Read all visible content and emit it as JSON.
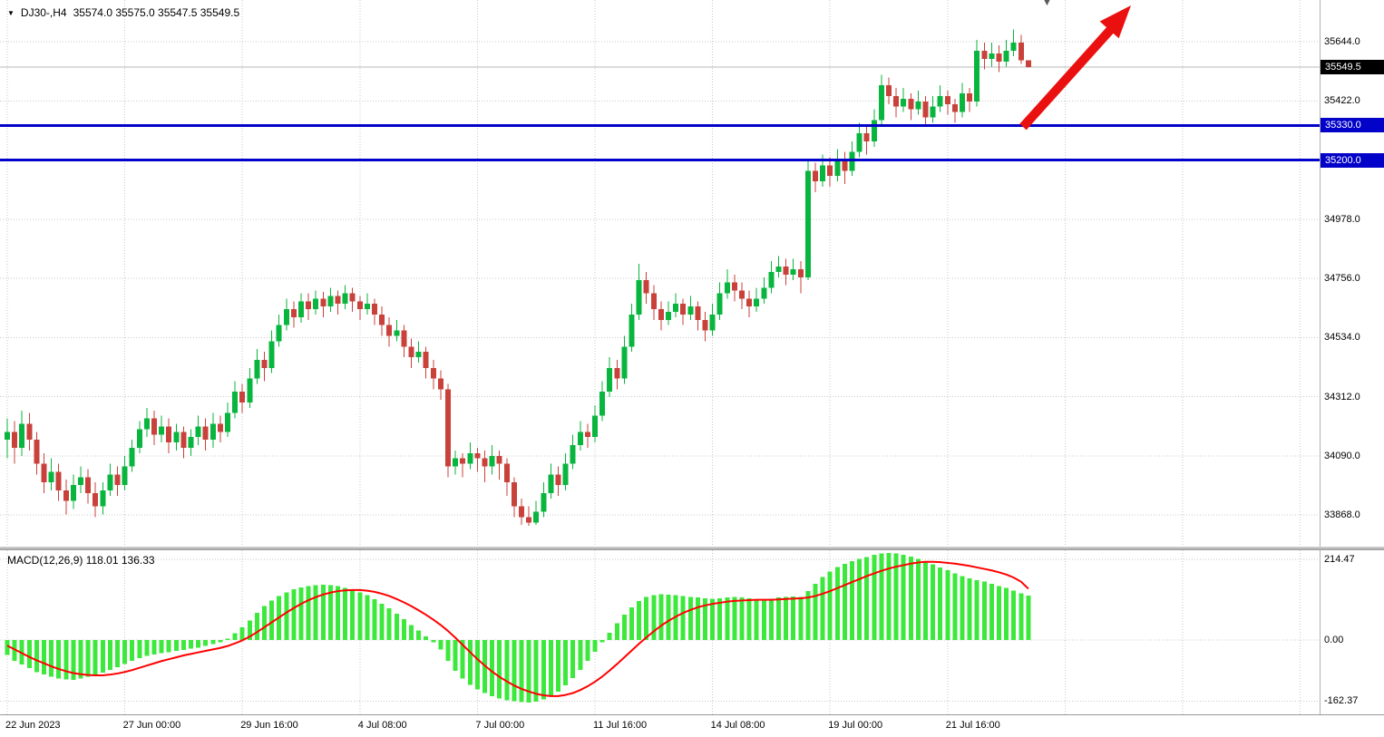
{
  "header": {
    "symbol": "DJ30-,H4",
    "ohlc": "35574.0 35575.0 35547.5 35549.5"
  },
  "icons": {
    "symbol_dropdown": "▼",
    "chart_shift": "▼"
  },
  "colors": {
    "bull": "#08b53e",
    "bear": "#c8413b",
    "macd_hist": "#3ce83c",
    "signal": "#ff0000",
    "hline": "#0202c8",
    "arrow": "#ea1010",
    "grid": "#c9c9c9",
    "bid_line": "#b8b8b8",
    "current_tag_bg": "#000000",
    "hline_tag_bg": "#0202c8"
  },
  "chart_data": {
    "type": "candlestick",
    "symbol": "DJ30-",
    "timeframe": "H4",
    "title": "DJ30-,H4 35574.0 35575.0 35547.5 35549.5",
    "current_bar": {
      "open": 35574.0,
      "high": 35575.0,
      "low": 35547.5,
      "close": 35549.5
    },
    "price_axis": {
      "ylim": [
        33749,
        35800.5
      ],
      "grid_prices": [
        35644,
        35422,
        35200,
        34978,
        34756,
        34534,
        34312,
        34090,
        33868
      ],
      "tick_labels": [
        {
          "price": 35644.0,
          "label": "35644.0"
        },
        {
          "price": 35422.0,
          "label": "35422.0"
        },
        {
          "price": 34978.0,
          "label": "34978.0"
        },
        {
          "price": 34756.0,
          "label": "34756.0"
        },
        {
          "price": 34534.0,
          "label": "34534.0"
        },
        {
          "price": 34312.0,
          "label": "34312.0"
        },
        {
          "price": 34090.0,
          "label": "34090.0"
        },
        {
          "price": 33868.0,
          "label": "33868.0"
        }
      ],
      "current_price": 35549.5,
      "current_price_label": "35549.5"
    },
    "hlines": [
      {
        "price": 35330.0,
        "label": "35330.0"
      },
      {
        "price": 35200.0,
        "label": "35200.0"
      }
    ],
    "time_axis": {
      "bars_per_grid": 16,
      "labels": [
        {
          "index": 0,
          "label": "22 Jun 2023"
        },
        {
          "index": 16,
          "label": "27 Jun 00:00"
        },
        {
          "index": 32,
          "label": "29 Jun 16:00"
        },
        {
          "index": 48,
          "label": "4 Jul 08:00"
        },
        {
          "index": 64,
          "label": "7 Jul 00:00"
        },
        {
          "index": 80,
          "label": "11 Jul 16:00"
        },
        {
          "index": 96,
          "label": "14 Jul 08:00"
        },
        {
          "index": 112,
          "label": "19 Jul 00:00"
        },
        {
          "index": 128,
          "label": "21 Jul 16:00"
        }
      ]
    },
    "candles": [
      [
        34150,
        34230,
        34080,
        34180
      ],
      [
        34180,
        34220,
        34060,
        34120
      ],
      [
        34120,
        34260,
        34090,
        34210
      ],
      [
        34210,
        34250,
        34110,
        34150
      ],
      [
        34150,
        34180,
        34020,
        34060
      ],
      [
        34060,
        34100,
        33950,
        33990
      ],
      [
        33990,
        34080,
        33960,
        34030
      ],
      [
        34030,
        34060,
        33920,
        33960
      ],
      [
        33960,
        34000,
        33870,
        33920
      ],
      [
        33920,
        34020,
        33890,
        33980
      ],
      [
        33980,
        34050,
        33950,
        34010
      ],
      [
        34010,
        34040,
        33910,
        33950
      ],
      [
        33950,
        33990,
        33860,
        33900
      ],
      [
        33900,
        33990,
        33870,
        33960
      ],
      [
        33960,
        34060,
        33940,
        34020
      ],
      [
        34020,
        34050,
        33940,
        33980
      ],
      [
        33980,
        34090,
        33960,
        34050
      ],
      [
        34050,
        34150,
        34030,
        34120
      ],
      [
        34120,
        34220,
        34100,
        34190
      ],
      [
        34190,
        34270,
        34160,
        34230
      ],
      [
        34230,
        34260,
        34130,
        34170
      ],
      [
        34170,
        34240,
        34140,
        34200
      ],
      [
        34200,
        34230,
        34100,
        34140
      ],
      [
        34140,
        34210,
        34110,
        34180
      ],
      [
        34180,
        34200,
        34080,
        34120
      ],
      [
        34120,
        34190,
        34090,
        34160
      ],
      [
        34160,
        34240,
        34130,
        34200
      ],
      [
        34200,
        34230,
        34110,
        34150
      ],
      [
        34150,
        34250,
        34120,
        34210
      ],
      [
        34210,
        34240,
        34140,
        34180
      ],
      [
        34180,
        34290,
        34160,
        34250
      ],
      [
        34250,
        34370,
        34230,
        34330
      ],
      [
        34330,
        34360,
        34250,
        34290
      ],
      [
        34290,
        34420,
        34270,
        34380
      ],
      [
        34380,
        34490,
        34360,
        34450
      ],
      [
        34450,
        34480,
        34370,
        34420
      ],
      [
        34420,
        34560,
        34400,
        34520
      ],
      [
        34520,
        34620,
        34500,
        34580
      ],
      [
        34580,
        34680,
        34560,
        34640
      ],
      [
        34640,
        34670,
        34570,
        34610
      ],
      [
        34610,
        34700,
        34590,
        34670
      ],
      [
        34670,
        34700,
        34600,
        34640
      ],
      [
        34640,
        34710,
        34620,
        34680
      ],
      [
        34680,
        34705,
        34610,
        34650
      ],
      [
        34650,
        34720,
        34630,
        34690
      ],
      [
        34690,
        34710,
        34620,
        34660
      ],
      [
        34660,
        34730,
        34640,
        34700
      ],
      [
        34700,
        34720,
        34630,
        34670
      ],
      [
        34670,
        34690,
        34600,
        34640
      ],
      [
        34640,
        34700,
        34620,
        34660
      ],
      [
        34660,
        34680,
        34580,
        34620
      ],
      [
        34620,
        34650,
        34540,
        34580
      ],
      [
        34580,
        34610,
        34500,
        34540
      ],
      [
        34540,
        34600,
        34520,
        34560
      ],
      [
        34560,
        34580,
        34460,
        34500
      ],
      [
        34500,
        34530,
        34420,
        34460
      ],
      [
        34460,
        34520,
        34440,
        34480
      ],
      [
        34480,
        34500,
        34380,
        34420
      ],
      [
        34420,
        34450,
        34340,
        34380
      ],
      [
        34380,
        34410,
        34300,
        34340
      ],
      [
        34340,
        34360,
        34010,
        34050
      ],
      [
        34050,
        34110,
        34020,
        34080
      ],
      [
        34080,
        34100,
        34010,
        34060
      ],
      [
        34060,
        34140,
        34040,
        34100
      ],
      [
        34100,
        34120,
        34030,
        34080
      ],
      [
        34080,
        34110,
        33990,
        34050
      ],
      [
        34050,
        34130,
        34020,
        34090
      ],
      [
        34090,
        34110,
        34000,
        34060
      ],
      [
        34060,
        34080,
        33940,
        33990
      ],
      [
        33990,
        34010,
        33860,
        33900
      ],
      [
        33900,
        33930,
        33830,
        33860
      ],
      [
        33860,
        33900,
        33828,
        33840
      ],
      [
        33840,
        33920,
        33830,
        33880
      ],
      [
        33880,
        33990,
        33860,
        33950
      ],
      [
        33950,
        34060,
        33930,
        34020
      ],
      [
        34020,
        34050,
        33940,
        33980
      ],
      [
        33980,
        34100,
        33960,
        34060
      ],
      [
        34060,
        34170,
        34040,
        34130
      ],
      [
        34130,
        34220,
        34110,
        34180
      ],
      [
        34180,
        34210,
        34120,
        34160
      ],
      [
        34160,
        34280,
        34140,
        34240
      ],
      [
        34240,
        34370,
        34220,
        34330
      ],
      [
        34330,
        34460,
        34310,
        34420
      ],
      [
        34420,
        34450,
        34340,
        34380
      ],
      [
        34380,
        34540,
        34360,
        34500
      ],
      [
        34500,
        34660,
        34480,
        34620
      ],
      [
        34620,
        34810,
        34600,
        34750
      ],
      [
        34750,
        34780,
        34660,
        34700
      ],
      [
        34700,
        34730,
        34600,
        34640
      ],
      [
        34640,
        34670,
        34560,
        34600
      ],
      [
        34600,
        34670,
        34580,
        34630
      ],
      [
        34630,
        34700,
        34610,
        34660
      ],
      [
        34660,
        34680,
        34580,
        34620
      ],
      [
        34620,
        34690,
        34600,
        34650
      ],
      [
        34650,
        34670,
        34560,
        34600
      ],
      [
        34600,
        34630,
        34520,
        34560
      ],
      [
        34560,
        34660,
        34540,
        34620
      ],
      [
        34620,
        34740,
        34600,
        34700
      ],
      [
        34700,
        34790,
        34680,
        34740
      ],
      [
        34740,
        34770,
        34670,
        34710
      ],
      [
        34710,
        34740,
        34640,
        34680
      ],
      [
        34680,
        34710,
        34610,
        34650
      ],
      [
        34650,
        34720,
        34630,
        34680
      ],
      [
        34680,
        34760,
        34660,
        34720
      ],
      [
        34720,
        34820,
        34700,
        34780
      ],
      [
        34780,
        34840,
        34760,
        34800
      ],
      [
        34800,
        34830,
        34730,
        34770
      ],
      [
        34770,
        34830,
        34750,
        34790
      ],
      [
        34790,
        34820,
        34700,
        34760
      ],
      [
        34760,
        35200,
        34750,
        35160
      ],
      [
        35160,
        35190,
        35080,
        35120
      ],
      [
        35120,
        35220,
        35100,
        35180
      ],
      [
        35180,
        35210,
        35100,
        35140
      ],
      [
        35140,
        35240,
        35120,
        35200
      ],
      [
        35200,
        35230,
        35110,
        35160
      ],
      [
        35160,
        35270,
        35140,
        35230
      ],
      [
        35230,
        35340,
        35210,
        35300
      ],
      [
        35300,
        35330,
        35220,
        35270
      ],
      [
        35270,
        35390,
        35250,
        35350
      ],
      [
        35350,
        35520,
        35330,
        35480
      ],
      [
        35480,
        35510,
        35410,
        35440
      ],
      [
        35440,
        35470,
        35360,
        35400
      ],
      [
        35400,
        35470,
        35380,
        35430
      ],
      [
        35430,
        35450,
        35350,
        35390
      ],
      [
        35390,
        35460,
        35370,
        35420
      ],
      [
        35420,
        35440,
        35330,
        35360
      ],
      [
        35360,
        35440,
        35340,
        35400
      ],
      [
        35400,
        35480,
        35380,
        35440
      ],
      [
        35440,
        35460,
        35370,
        35410
      ],
      [
        35410,
        35430,
        35340,
        35380
      ],
      [
        35380,
        35490,
        35360,
        35450
      ],
      [
        35450,
        35470,
        35380,
        35420
      ],
      [
        35420,
        35650,
        35400,
        35610
      ],
      [
        35610,
        35640,
        35540,
        35580
      ],
      [
        35580,
        35640,
        35550,
        35600
      ],
      [
        35600,
        35630,
        35530,
        35570
      ],
      [
        35570,
        35650,
        35550,
        35610
      ],
      [
        35610,
        35690,
        35590,
        35640
      ],
      [
        35640,
        35670,
        35560,
        35574
      ],
      [
        35574,
        35575,
        35547.5,
        35549.5
      ]
    ],
    "macd": {
      "label": "MACD(12,26,9) 118.01 136.33",
      "params": "12,26,9",
      "value": 118.01,
      "signal_value": 136.33,
      "ylim": [
        -197.6,
        238.6
      ],
      "axis_ticks": [
        {
          "value": 214.47,
          "label": "214.47"
        },
        {
          "value": 0,
          "label": "0.00"
        },
        {
          "value": -162.37,
          "label": "-162.37"
        }
      ],
      "histogram": [
        -40,
        -55,
        -65,
        -75,
        -85,
        -92,
        -98,
        -102,
        -105,
        -106,
        -103,
        -98,
        -93,
        -87,
        -80,
        -72,
        -64,
        -56,
        -48,
        -42,
        -38,
        -35,
        -32,
        -29,
        -26,
        -23,
        -20,
        -16,
        -11,
        -6,
        4,
        18,
        34,
        52,
        72,
        90,
        105,
        117,
        127,
        135,
        140,
        144,
        146,
        147,
        146,
        143,
        139,
        134,
        127,
        119,
        109,
        97,
        84,
        70,
        55,
        40,
        25,
        10,
        -6,
        -25,
        -55,
        -82,
        -103,
        -119,
        -131,
        -141,
        -149,
        -155,
        -160,
        -163,
        -165,
        -166,
        -164,
        -158,
        -149,
        -137,
        -121,
        -101,
        -79,
        -56,
        -31,
        -6,
        19,
        44,
        67,
        87,
        104,
        114,
        119,
        122,
        121,
        119,
        117,
        115,
        113,
        111,
        110,
        111,
        113,
        114,
        113,
        111,
        109,
        108,
        110,
        113,
        115,
        116,
        115,
        130,
        150,
        168,
        182,
        194,
        203,
        210,
        216,
        221,
        226,
        230,
        231,
        230,
        227,
        222,
        216,
        209,
        201,
        193,
        185,
        177,
        170,
        164,
        159,
        155,
        150,
        144,
        138,
        131,
        124,
        118.01
      ],
      "signal": [
        -15,
        -25,
        -35,
        -45,
        -54,
        -62,
        -70,
        -77,
        -83,
        -88,
        -91,
        -93,
        -94,
        -94,
        -92,
        -89,
        -85,
        -80,
        -74,
        -68,
        -62,
        -56,
        -51,
        -46,
        -41,
        -37,
        -33,
        -29,
        -25,
        -21,
        -16,
        -9,
        -1,
        9,
        21,
        34,
        47,
        60,
        73,
        85,
        96,
        106,
        114,
        121,
        126,
        130,
        132,
        133,
        133,
        131,
        128,
        123,
        117,
        109,
        100,
        90,
        79,
        67,
        54,
        40,
        24,
        6,
        -13,
        -32,
        -51,
        -68,
        -84,
        -98,
        -110,
        -121,
        -130,
        -137,
        -143,
        -147,
        -149,
        -149,
        -146,
        -141,
        -133,
        -123,
        -111,
        -97,
        -81,
        -64,
        -46,
        -28,
        -10,
        7,
        23,
        38,
        51,
        62,
        72,
        80,
        87,
        92,
        96,
        99,
        102,
        104,
        105,
        106,
        107,
        107,
        107,
        108,
        109,
        110,
        111,
        113,
        117,
        123,
        130,
        138,
        146,
        154,
        162,
        170,
        177,
        184,
        190,
        195,
        199,
        203,
        206,
        208,
        208,
        207,
        205,
        203,
        200,
        197,
        193,
        189,
        185,
        180,
        174,
        166,
        155,
        136.33
      ]
    },
    "annotations": {
      "trend_arrow": {
        "shape": "arrow",
        "direction": "up-right"
      }
    }
  }
}
